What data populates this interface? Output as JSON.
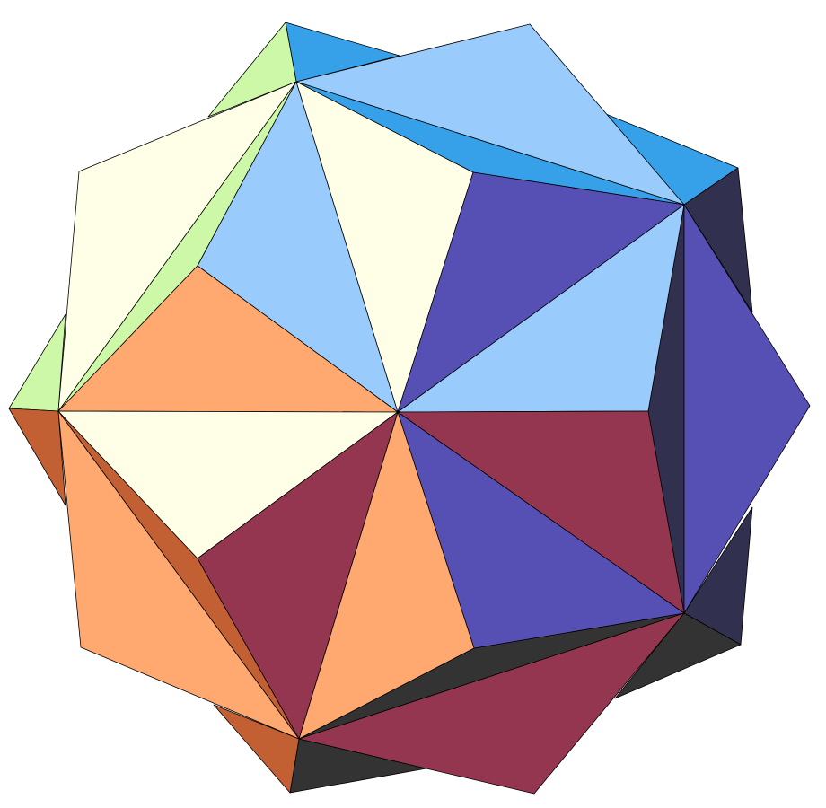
{
  "colors": {
    "background": "#ffffff",
    "edge": "#000000",
    "cream": "#ffffe8",
    "light_blue": "#99ccfc",
    "bright_blue": "#36a0e8",
    "light_green": "#ccf8a8",
    "purple": "#5750b4",
    "dark_navy": "#31304f",
    "peach": "#ffa870",
    "rust": "#c26034",
    "maroon": "#953651",
    "charcoal": "#333333"
  }
}
